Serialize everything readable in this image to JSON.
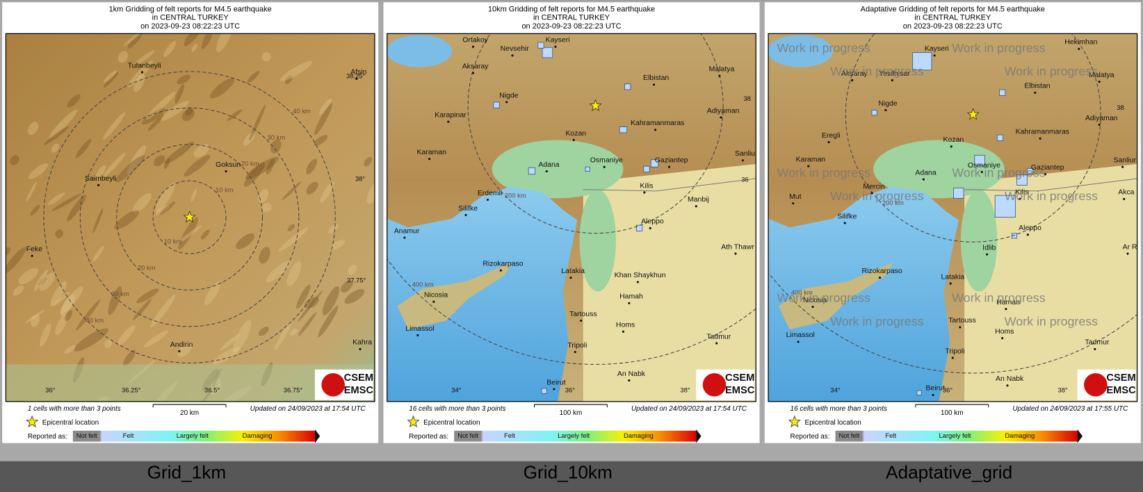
{
  "panels": [
    {
      "title": [
        "1km Gridding of felt reports for M4.5 earthquake",
        "in CENTRAL TURKEY",
        "on  2023-09-23 08:22:23 UTC"
      ],
      "places": [
        "Tufanbeyli",
        "Afsin",
        "Goksun",
        "Saimbeyli",
        "Feke",
        "Andirin",
        "Kahra"
      ],
      "coords": [
        "38.25°",
        "38°",
        "37.75°",
        "36°",
        "36.25°",
        "36.5°",
        "36.75°"
      ],
      "rings": [
        "10 km",
        "20 km",
        "30 km",
        "40 km",
        "10 km",
        "20 km",
        "30 km",
        "40 km"
      ],
      "cells_note": "1 cells with more than 3 points",
      "scale": "20 km",
      "updated": "Updated on 24/09/2023 at 17:54 UTC",
      "epicentre": "Epicentral location",
      "reported": "Reported as:",
      "legend": [
        "Not felt",
        "Felt",
        "Largely felt",
        "Damaging"
      ],
      "logo": [
        "CSEM",
        "EMSC"
      ],
      "caption": "Grid_1km"
    },
    {
      "title": [
        "10km Gridding of felt reports for M4.5 earthquake",
        "in CENTRAL TURKEY",
        "on  2023-09-23 08:22:23 UTC"
      ],
      "places": [
        "Ortakoy",
        "Kayseri",
        "Nevsehir",
        "Aksaray",
        "Elbistan",
        "Malatya",
        "Nigde",
        "Karapinar",
        "Kahramanmaras",
        "Adiyaman",
        "Kozan",
        "Karaman",
        "Osmaniye",
        "Gaziantep",
        "Sanliu",
        "Adana",
        "Kilis",
        "Erdemli",
        "Manbij",
        "Silifke",
        "Aleppo",
        "Anamur",
        "Ath Thawr",
        "Rizokarpaso",
        "Latakia",
        "Khan Shaykhun",
        "Nicosia",
        "Hamah",
        "Tartouss",
        "Homs",
        "Limassol",
        "Tadmur",
        "Tripoli",
        "An Nabk",
        "Beirut"
      ],
      "coords": [
        "38",
        "36",
        "34°",
        "36°",
        "38°"
      ],
      "rings": [
        "200 km",
        "400 km"
      ],
      "cells_note": "16 cells with more than 3 points",
      "scale": "100 km",
      "updated": "Updated on 24/09/2023 at 17:54 UTC",
      "epicentre": "Epicentral location",
      "reported": "Reported as:",
      "legend": [
        "Not felt",
        "Felt",
        "Largely felt",
        "Damaging"
      ],
      "logo": [
        "CSEM",
        "EMSC"
      ],
      "caption": "Grid_10km"
    },
    {
      "title": [
        "Adaptative Gridding of felt reports for M4.5 earthquake",
        "in CENTRAL TURKEY",
        "on  2023-09-23 08:22:23 UTC"
      ],
      "places": [
        "Kayseri",
        "Hekimhan",
        "Aksaray",
        "Yesilhisar",
        "Malatya",
        "Elbistan",
        "Nigde",
        "Adiyaman",
        "Eregli",
        "Kahramanmaras",
        "Kozan",
        "Karaman",
        "Osmaniye",
        "Gaziantep",
        "Sanliur",
        "Adana",
        "Mercin",
        "Kilis",
        "Akca",
        "Mut",
        "Silifke",
        "Aleppo",
        "Idlib",
        "Ar R",
        "Rizokarpaso",
        "Latakia",
        "Nicosia",
        "Haman",
        "Tartouss",
        "Homs",
        "Limassol",
        "Tadmur",
        "Tripoli",
        "An Nabk",
        "Beirut"
      ],
      "coords": [
        "38",
        "34°",
        "36°",
        "38°"
      ],
      "rings": [
        "200 km",
        "400 km"
      ],
      "cells_note": "16 cells with more than 3 points",
      "scale": "100 km",
      "updated": "Updated on 24/09/2023 at 17:55 UTC",
      "epicentre": "Epicentral location",
      "reported": "Reported as:",
      "legend": [
        "Not felt",
        "Felt",
        "Largely felt",
        "Damaging"
      ],
      "logo": [
        "CSEM",
        "EMSC"
      ],
      "caption": "Adaptative_grid",
      "watermark": "Work in progress"
    }
  ]
}
